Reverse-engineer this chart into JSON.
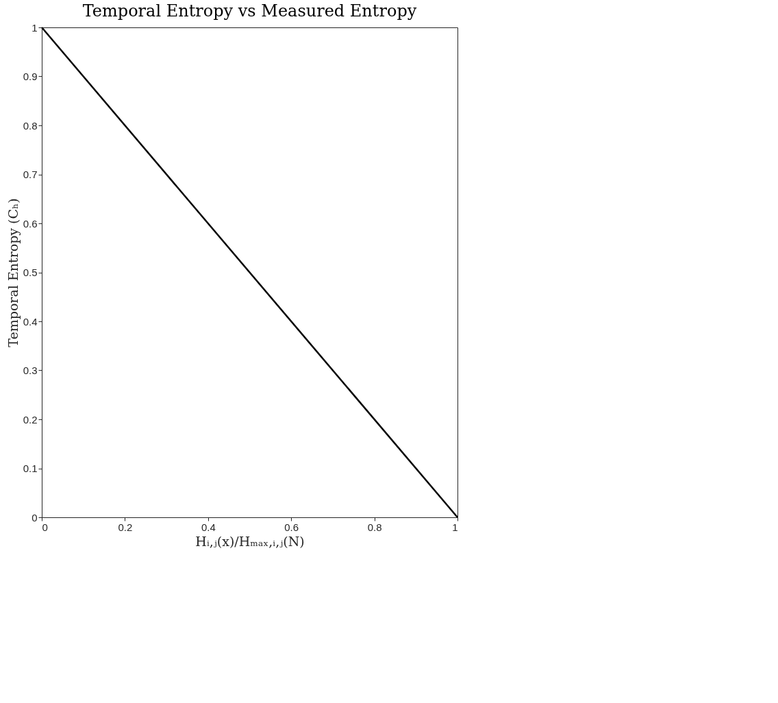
{
  "chart_data": {
    "type": "line",
    "title": "Temporal Entropy vs Measured Entropy",
    "xlabel": "Hᵢ,ⱼ(x)/Hₘₐₓ,ᵢ,ⱼ(N)",
    "ylabel": "Temporal Entropy (Cₕ)",
    "series": [
      {
        "color": "#000000",
        "x": [
          0,
          1
        ],
        "values": [
          1,
          0
        ]
      }
    ],
    "xlim": [
      0,
      1
    ],
    "ylim": [
      0,
      1
    ],
    "xticks": [
      0,
      0.2,
      0.4,
      0.6,
      0.8,
      1
    ],
    "yticks": [
      0,
      0.1,
      0.2,
      0.3,
      0.4,
      0.5,
      0.6,
      0.7,
      0.8,
      0.9,
      1
    ],
    "grid": false,
    "line_style": "solid"
  }
}
